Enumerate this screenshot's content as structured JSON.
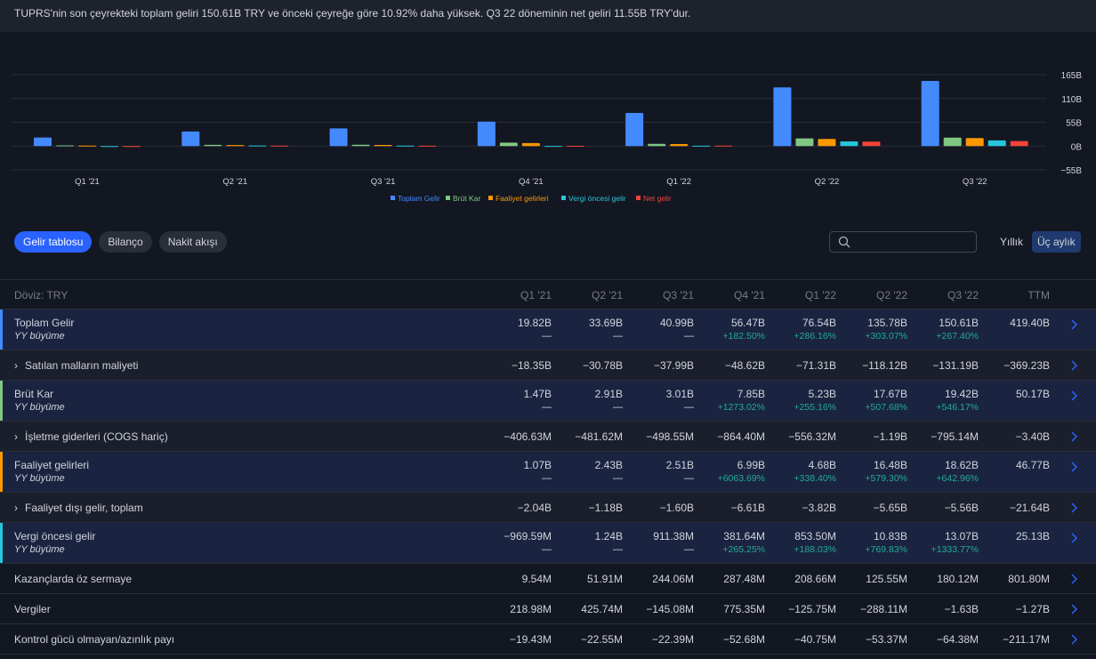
{
  "summary": "TUPRS'nin son çeyrekteki toplam geliri 150.61B TRY ve önceki çeyreğe göre 10.92% daha yüksek. Q3 22 döneminin net geliri 11.55B TRY'dur.",
  "colors": {
    "accent": "#2962ff",
    "toplam_gelir": "#448aff",
    "brut_kar": "#81c784",
    "faaliyet": "#ff9800",
    "vergi": "#26c6da",
    "net": "#f44336",
    "positive": "#22ab94"
  },
  "chart_data": {
    "type": "bar",
    "categories": [
      "Q1 '21",
      "Q2 '21",
      "Q3 '21",
      "Q4 '21",
      "Q1 '22",
      "Q2 '22",
      "Q3 '22"
    ],
    "series": [
      {
        "name": "Toplam Gelir",
        "color": "#448aff",
        "values": [
          19.82,
          33.69,
          40.99,
          56.47,
          76.54,
          135.78,
          150.61
        ]
      },
      {
        "name": "Brüt Kar",
        "color": "#81c784",
        "values": [
          1.47,
          2.91,
          3.01,
          7.85,
          5.23,
          17.67,
          19.42
        ]
      },
      {
        "name": "Faaliyet gelirleri",
        "color": "#ff9800",
        "values": [
          1.07,
          2.43,
          2.51,
          6.99,
          4.68,
          16.48,
          18.62
        ]
      },
      {
        "name": "Vergi öncesi gelir",
        "color": "#26c6da",
        "values": [
          -0.97,
          1.24,
          0.91,
          0.38,
          0.85,
          10.83,
          13.07
        ]
      },
      {
        "name": "Net gelir",
        "color": "#f44336",
        "values": [
          -0.9,
          1.1,
          0.8,
          0.5,
          0.9,
          10.2,
          11.55
        ]
      }
    ],
    "y_ticks": [
      "165B",
      "110B",
      "55B",
      "0B",
      "−55B"
    ],
    "ylim": [
      -55,
      165
    ],
    "grid": true,
    "legend_position": "bottom"
  },
  "tabs": [
    {
      "label": "Gelir tablosu",
      "active": true
    },
    {
      "label": "Bilanço",
      "active": false
    },
    {
      "label": "Nakit akışı",
      "active": false
    }
  ],
  "search": {
    "placeholder": ""
  },
  "period": {
    "yearly": "Yıllık",
    "quarterly": "Üç aylık"
  },
  "table": {
    "currency_label": "Döviz: TRY",
    "columns": [
      "Q1 '21",
      "Q2 '21",
      "Q3 '21",
      "Q4 '21",
      "Q1 '22",
      "Q2 '22",
      "Q3 '22",
      "TTM"
    ],
    "rows": [
      {
        "name": "Toplam Gelir",
        "type": "tall",
        "bar": "#448aff",
        "sub": "YY büyüme",
        "values": [
          "19.82B",
          "33.69B",
          "40.99B",
          "56.47B",
          "76.54B",
          "135.78B",
          "150.61B",
          "419.40B"
        ],
        "growth": [
          "—",
          "—",
          "—",
          "+182.50%",
          "+286.16%",
          "+303.07%",
          "+267.40%",
          ""
        ]
      },
      {
        "name": "Satılan malların maliyeti",
        "type": "short",
        "caret": "›",
        "values": [
          "−18.35B",
          "−30.78B",
          "−37.99B",
          "−48.62B",
          "−71.31B",
          "−118.12B",
          "−131.19B",
          "−369.23B"
        ]
      },
      {
        "name": "Brüt Kar",
        "type": "tall",
        "bar": "#81c784",
        "sub": "YY büyüme",
        "values": [
          "1.47B",
          "2.91B",
          "3.01B",
          "7.85B",
          "5.23B",
          "17.67B",
          "19.42B",
          "50.17B"
        ],
        "growth": [
          "—",
          "—",
          "—",
          "+1273.02%",
          "+255.16%",
          "+507.68%",
          "+546.17%",
          ""
        ]
      },
      {
        "name": "İşletme giderleri (COGS hariç)",
        "type": "short",
        "caret": "›",
        "values": [
          "−406.63M",
          "−481.62M",
          "−498.55M",
          "−864.40M",
          "−556.32M",
          "−1.19B",
          "−795.14M",
          "−3.40B"
        ]
      },
      {
        "name": "Faaliyet gelirleri",
        "type": "tall",
        "bar": "#ff9800",
        "sub": "YY büyüme",
        "values": [
          "1.07B",
          "2.43B",
          "2.51B",
          "6.99B",
          "4.68B",
          "16.48B",
          "18.62B",
          "46.77B"
        ],
        "growth": [
          "—",
          "—",
          "—",
          "+6063.69%",
          "+338.40%",
          "+579.30%",
          "+642.96%",
          ""
        ]
      },
      {
        "name": "Faaliyet dışı gelir, toplam",
        "type": "short",
        "caret": "›",
        "values": [
          "−2.04B",
          "−1.18B",
          "−1.60B",
          "−6.61B",
          "−3.82B",
          "−5.65B",
          "−5.56B",
          "−21.64B"
        ]
      },
      {
        "name": "Vergi öncesi gelir",
        "type": "tall",
        "bar": "#26c6da",
        "sub": "YY büyüme",
        "values": [
          "−969.59M",
          "1.24B",
          "911.38M",
          "381.64M",
          "853.50M",
          "10.83B",
          "13.07B",
          "25.13B"
        ],
        "growth": [
          "—",
          "—",
          "—",
          "+265.25%",
          "+188.03%",
          "+769.83%",
          "+1333.77%",
          ""
        ]
      },
      {
        "name": "Kazançlarda öz sermaye",
        "type": "short",
        "values": [
          "9.54M",
          "51.91M",
          "244.06M",
          "287.48M",
          "208.66M",
          "125.55M",
          "180.12M",
          "801.80M"
        ]
      },
      {
        "name": "Vergiler",
        "type": "short",
        "values": [
          "218.98M",
          "425.74M",
          "−145.08M",
          "775.35M",
          "−125.75M",
          "−288.11M",
          "−1.63B",
          "−1.27B"
        ]
      },
      {
        "name": "Kontrol gücü olmayan/azınlık payı",
        "type": "short",
        "values": [
          "−19.43M",
          "−22.55M",
          "−22.39M",
          "−52.68M",
          "−40.75M",
          "−53.37M",
          "−64.38M",
          "−211.17M"
        ]
      }
    ]
  }
}
